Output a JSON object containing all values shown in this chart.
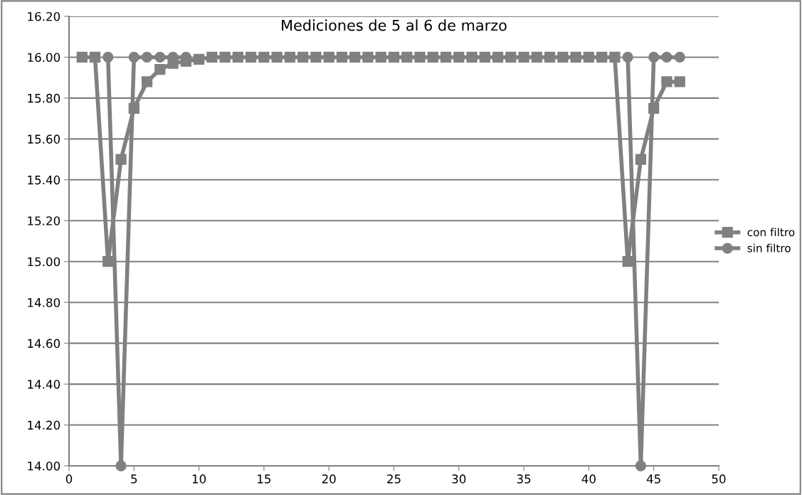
{
  "chart_data": {
    "type": "line",
    "title": "Mediciones de 5 al 6 de marzo",
    "x": [
      1,
      2,
      3,
      4,
      5,
      6,
      7,
      8,
      9,
      10,
      11,
      12,
      13,
      14,
      15,
      16,
      17,
      18,
      19,
      20,
      21,
      22,
      23,
      24,
      25,
      26,
      27,
      28,
      29,
      30,
      31,
      32,
      33,
      34,
      35,
      36,
      37,
      38,
      39,
      40,
      41,
      42,
      43,
      44,
      45,
      46,
      47
    ],
    "series": [
      {
        "name": "con filtro",
        "color": "#808080",
        "marker": "square",
        "values": [
          16,
          16,
          15,
          15.5,
          15.75,
          15.88,
          15.94,
          15.97,
          15.98,
          15.99,
          16,
          16,
          16,
          16,
          16,
          16,
          16,
          16,
          16,
          16,
          16,
          16,
          16,
          16,
          16,
          16,
          16,
          16,
          16,
          16,
          16,
          16,
          16,
          16,
          16,
          16,
          16,
          16,
          16,
          16,
          16,
          16,
          15,
          15.5,
          15.75,
          15.88,
          15.88
        ]
      },
      {
        "name": "sin filtro",
        "color": "#808080",
        "marker": "circle",
        "values": [
          null,
          null,
          16,
          14,
          16,
          16,
          16,
          16,
          16,
          null,
          null,
          null,
          null,
          null,
          null,
          null,
          null,
          null,
          null,
          null,
          null,
          null,
          null,
          null,
          null,
          null,
          null,
          null,
          null,
          null,
          null,
          null,
          null,
          null,
          null,
          null,
          null,
          null,
          null,
          null,
          null,
          null,
          16,
          14,
          16,
          16,
          16
        ]
      }
    ],
    "xlim": [
      0,
      50
    ],
    "xticks": [
      0,
      5,
      10,
      15,
      20,
      25,
      30,
      35,
      40,
      45,
      50
    ],
    "ylim": [
      14,
      16.2
    ],
    "yticks": [
      {
        "value": 14,
        "label": "14.00"
      },
      {
        "value": 14.2,
        "label": "14.20"
      },
      {
        "value": 14.4,
        "label": "14.40"
      },
      {
        "value": 14.6,
        "label": "14.60"
      },
      {
        "value": 14.8,
        "label": "14.80"
      },
      {
        "value": 15,
        "label": "15.00"
      },
      {
        "value": 15.2,
        "label": "15.20"
      },
      {
        "value": 15.4,
        "label": "15.40"
      },
      {
        "value": 15.6,
        "label": "15.60"
      },
      {
        "value": 15.8,
        "label": "15.80"
      },
      {
        "value": 16,
        "label": "16.00"
      },
      {
        "value": 16.2,
        "label": "16.20"
      }
    ],
    "grid": "y",
    "legend": "right",
    "line_style": "solid"
  }
}
